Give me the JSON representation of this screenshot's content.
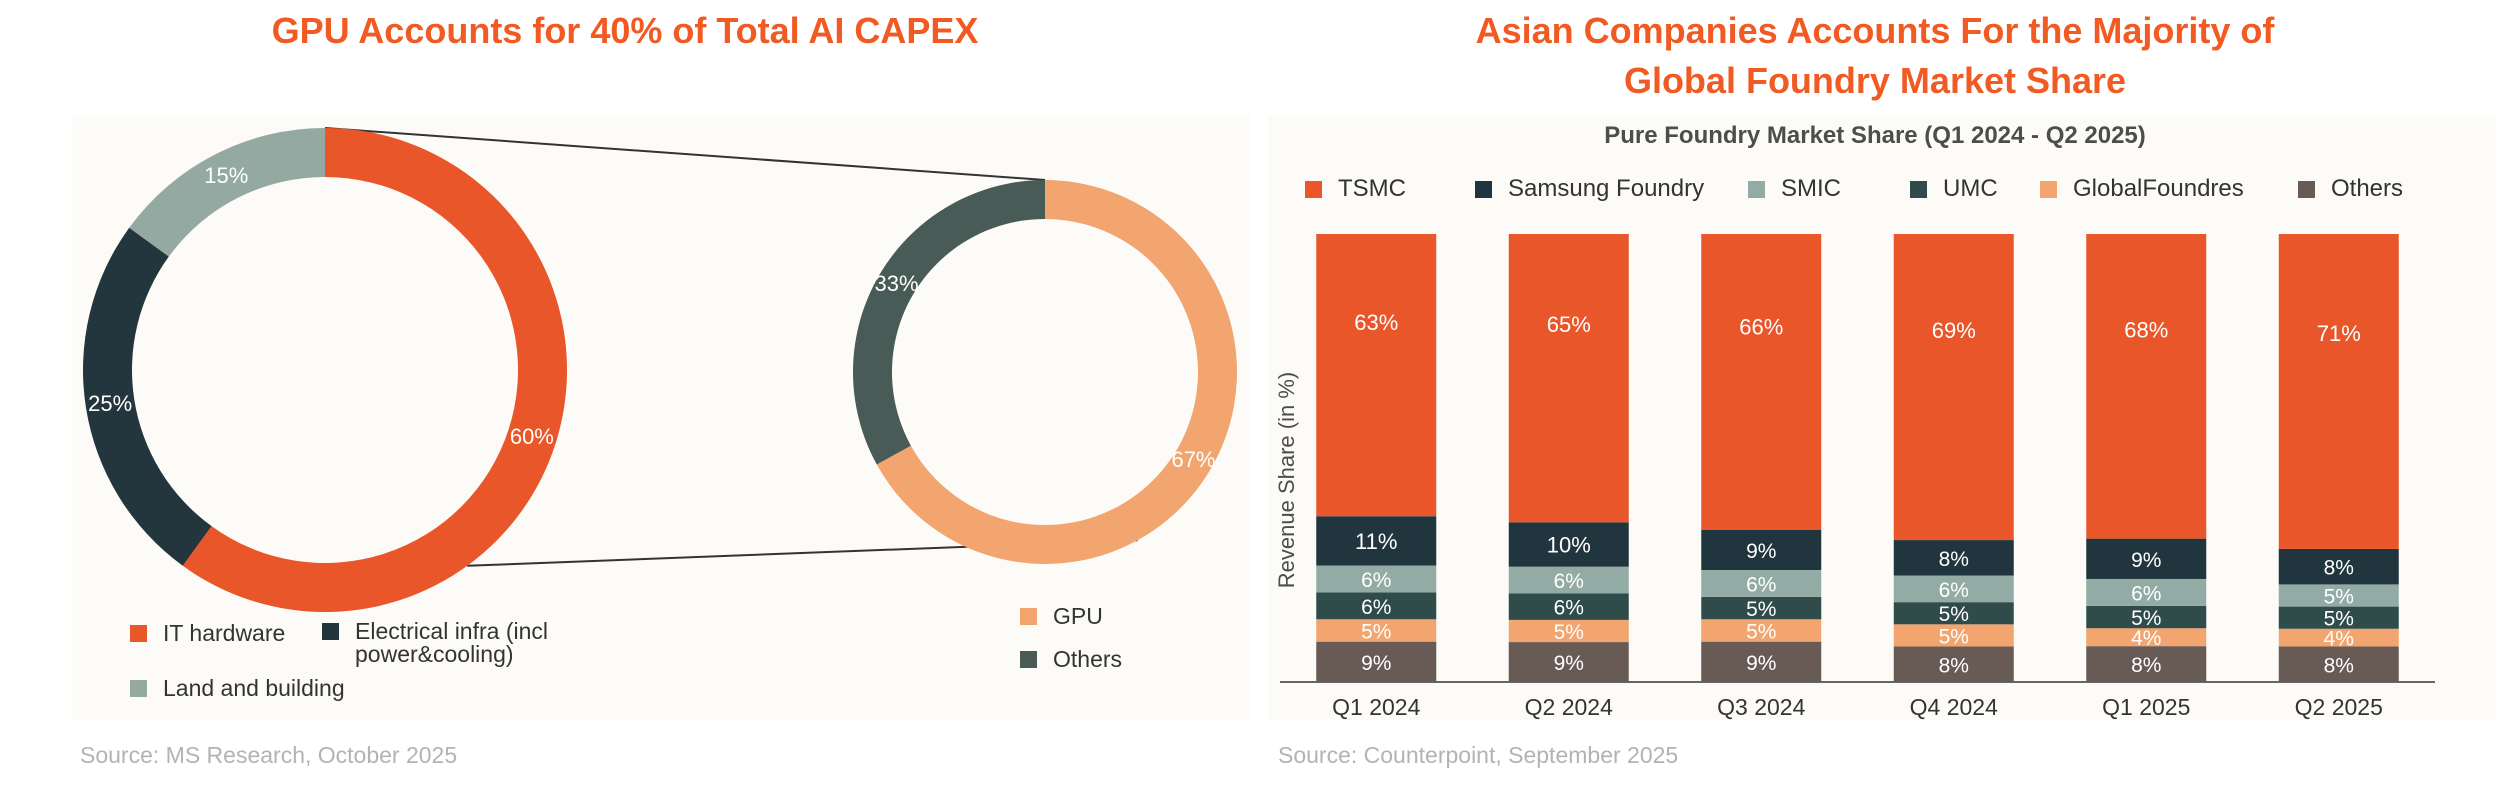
{
  "left": {
    "title": "GPU Accounts for 40% of Total AI CAPEX",
    "source": "Source: MS Research, October 2025",
    "chart_data": [
      {
        "type": "pie",
        "variant": "donut",
        "slices": [
          {
            "label": "IT hardware",
            "value": 60,
            "color": "#e8562a"
          },
          {
            "label": "Electrical infra (incl power&cooling)",
            "value": 25,
            "color": "#24363d"
          },
          {
            "label": "Land and building",
            "value": 15,
            "color": "#93a9a1"
          }
        ],
        "value_labels": [
          "60%",
          "25%",
          "15%"
        ],
        "legend": [
          "IT hardware",
          "Electrical infra (incl",
          "power&cooling)",
          "Land and building"
        ],
        "legend_position": "bottom"
      },
      {
        "type": "pie",
        "variant": "donut",
        "slices": [
          {
            "label": "GPU",
            "value": 67,
            "color": "#f2a56e"
          },
          {
            "label": "Others",
            "value": 33,
            "color": "#495b56"
          }
        ],
        "value_labels": [
          "67%",
          "33%"
        ],
        "legend": [
          "GPU",
          "Others"
        ],
        "legend_position": "bottom-right"
      }
    ]
  },
  "right": {
    "title_line1": "Asian Companies Accounts For the Majority of",
    "title_line2": "Global Foundry Market Share",
    "source": "Source: Counterpoint, September 2025",
    "chart_data": {
      "type": "bar",
      "stacked": true,
      "title": "Pure Foundry Market Share (Q1 2024 - Q2 2025)",
      "ylabel": "Revenue Share (in %)",
      "xlabel": "",
      "categories": [
        "Q1 2024",
        "Q2 2024",
        "Q3 2024",
        "Q4 2024",
        "Q1 2025",
        "Q2 2025"
      ],
      "series": [
        {
          "name": "Others",
          "color": "#685a55",
          "values": [
            9,
            9,
            9,
            8,
            8,
            8
          ]
        },
        {
          "name": "GlobalFoundres",
          "color": "#f2a56e",
          "values": [
            5,
            5,
            5,
            5,
            4,
            4
          ]
        },
        {
          "name": "UMC",
          "color": "#2f4c4a",
          "values": [
            6,
            6,
            5,
            5,
            5,
            5
          ]
        },
        {
          "name": "SMIC",
          "color": "#93aba5",
          "values": [
            6,
            6,
            6,
            6,
            6,
            5
          ]
        },
        {
          "name": "Samsung Foundry",
          "color": "#21353e",
          "values": [
            11,
            10,
            9,
            8,
            9,
            8
          ]
        },
        {
          "name": "TSMC",
          "color": "#e8562a",
          "values": [
            63,
            65,
            66,
            69,
            68,
            71
          ]
        }
      ],
      "legend_order": [
        "TSMC",
        "Samsung Foundry",
        "SMIC",
        "UMC",
        "GlobalFoundres",
        "Others"
      ],
      "legend_position": "top",
      "grid": false
    }
  }
}
